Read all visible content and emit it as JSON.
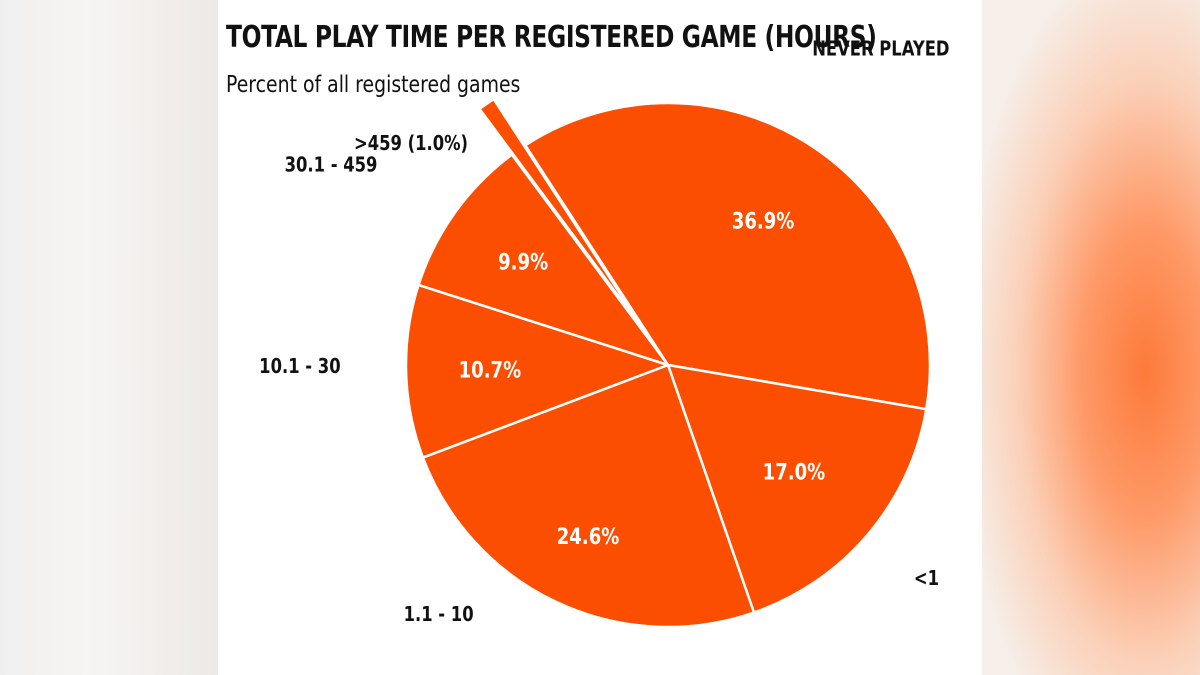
{
  "chart_data": {
    "type": "pie",
    "title": "TOTAL PLAY TIME PER REGISTERED GAME (HOURS)",
    "subtitle": "Percent of all registered games",
    "slices": [
      {
        "category": "NEVER PLAYED",
        "value": 36.9,
        "value_label": "36.9%"
      },
      {
        "category": "<1",
        "value": 17.0,
        "value_label": "17.0%"
      },
      {
        "category": "1.1 - 10",
        "value": 24.6,
        "value_label": "24.6%"
      },
      {
        "category": "10.1 - 30",
        "value": 10.7,
        "value_label": "10.7%"
      },
      {
        "category": "30.1 - 459",
        "value": 9.9,
        "value_label": "9.9%"
      },
      {
        "category": ">459 (1.0%)",
        "value": 1.0,
        "value_label": "",
        "exploded": true
      }
    ],
    "start_angle_deg": 327,
    "slice_color": "#fc4e00",
    "separator_color": "#ffffff",
    "label_color": "#111111",
    "value_label_color": "#ffffff"
  }
}
